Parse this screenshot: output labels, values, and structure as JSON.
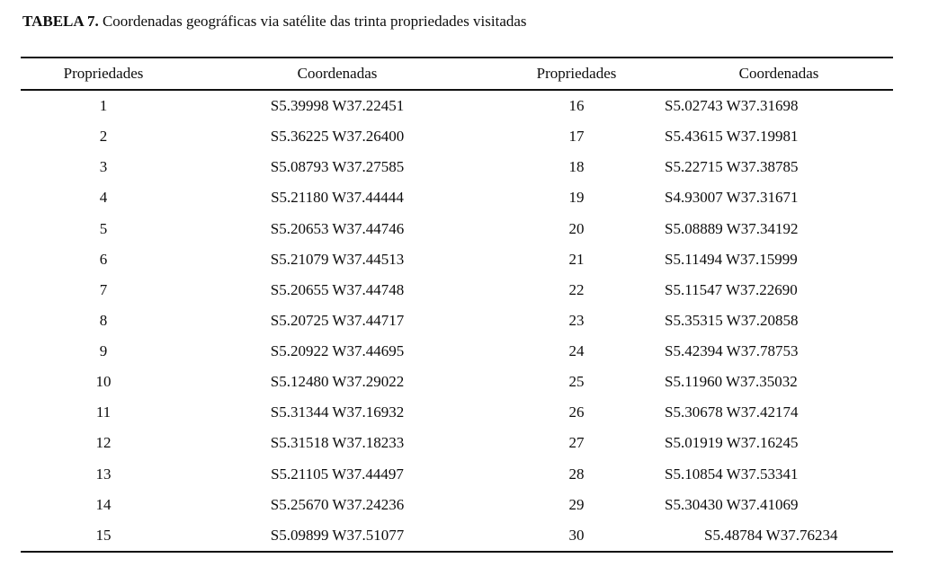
{
  "caption": {
    "tag": "TABELA 7.",
    "text": " Coordenadas geográficas via satélite das trinta propriedades visitadas"
  },
  "table": {
    "headers": [
      "Propriedades",
      "Coordenadas",
      "Propriedades",
      "Coordenadas"
    ],
    "rows": [
      {
        "prop_left": "1",
        "coord_left": "S5.39998 W37.22451",
        "prop_right": "16",
        "coord_right": "S5.02743 W37.31698",
        "indent": false
      },
      {
        "prop_left": "2",
        "coord_left": "S5.36225 W37.26400",
        "prop_right": "17",
        "coord_right": "S5.43615 W37.19981",
        "indent": false
      },
      {
        "prop_left": "3",
        "coord_left": "S5.08793 W37.27585",
        "prop_right": "18",
        "coord_right": "S5.22715 W37.38785",
        "indent": false
      },
      {
        "prop_left": "4",
        "coord_left": "S5.21180 W37.44444",
        "prop_right": "19",
        "coord_right": "S4.93007 W37.31671",
        "indent": false
      },
      {
        "prop_left": "5",
        "coord_left": "S5.20653 W37.44746",
        "prop_right": "20",
        "coord_right": "S5.08889 W37.34192",
        "indent": false
      },
      {
        "prop_left": "6",
        "coord_left": "S5.21079 W37.44513",
        "prop_right": "21",
        "coord_right": "S5.11494 W37.15999",
        "indent": false
      },
      {
        "prop_left": "7",
        "coord_left": "S5.20655 W37.44748",
        "prop_right": "22",
        "coord_right": "S5.11547 W37.22690",
        "indent": false
      },
      {
        "prop_left": "8",
        "coord_left": "S5.20725 W37.44717",
        "prop_right": "23",
        "coord_right": "S5.35315 W37.20858",
        "indent": false
      },
      {
        "prop_left": "9",
        "coord_left": "S5.20922 W37.44695",
        "prop_right": "24",
        "coord_right": "S5.42394 W37.78753",
        "indent": false
      },
      {
        "prop_left": "10",
        "coord_left": "S5.12480 W37.29022",
        "prop_right": "25",
        "coord_right": "S5.11960 W37.35032",
        "indent": false
      },
      {
        "prop_left": "11",
        "coord_left": "S5.31344 W37.16932",
        "prop_right": "26",
        "coord_right": "S5.30678 W37.42174",
        "indent": false
      },
      {
        "prop_left": "12",
        "coord_left": "S5.31518 W37.18233",
        "prop_right": "27",
        "coord_right": "S5.01919 W37.16245",
        "indent": false
      },
      {
        "prop_left": "13",
        "coord_left": "S5.21105 W37.44497",
        "prop_right": "28",
        "coord_right": "S5.10854 W37.53341",
        "indent": false
      },
      {
        "prop_left": "14",
        "coord_left": "S5.25670 W37.24236",
        "prop_right": "29",
        "coord_right": "S5.30430 W37.41069",
        "indent": false
      },
      {
        "prop_left": "15",
        "coord_left": "S5.09899 W37.51077",
        "prop_right": "30",
        "coord_right": "S5.48784 W37.76234",
        "indent": true
      }
    ]
  }
}
